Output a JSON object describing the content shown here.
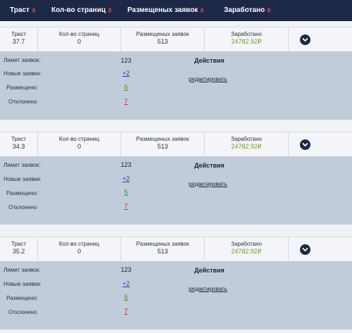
{
  "header": {
    "columns": [
      "Траст",
      "Кол-во страниц",
      "Размещеных заявок",
      "Заработано"
    ]
  },
  "rows": [
    {
      "trust_label": "Траст",
      "trust": "37.7",
      "pages_label": "Кол-во страниц",
      "pages": "0",
      "placed_label": "Размещеных заявок",
      "placed": "513",
      "earned_label": "Заработано",
      "earned": "24782.92₽",
      "limit_label": "Лимит заявок:",
      "limit": "123",
      "new_label": "Новые заявки:",
      "new": "+2",
      "placed2_label": "Размещено:",
      "placed2": "5",
      "rejected_label": "Отклонено",
      "rejected": "7",
      "actions_title": "Действия",
      "edit": "редактировать"
    },
    {
      "trust_label": "Траст",
      "trust": "34.3",
      "pages_label": "Кол-во страниц",
      "pages": "0",
      "placed_label": "Размещеных заявок",
      "placed": "513",
      "earned_label": "Заработано",
      "earned": "24782.92₽",
      "limit_label": "Лимит заявок:",
      "limit": "123",
      "new_label": "Новые заявки:",
      "new": "+2",
      "placed2_label": "Размещено:",
      "placed2": "5",
      "rejected_label": "Отклонено",
      "rejected": "7",
      "actions_title": "Действия",
      "edit": "редактировать"
    },
    {
      "trust_label": "Траст",
      "trust": "35.2",
      "pages_label": "Кол-во страниц",
      "pages": "0",
      "placed_label": "Размещеных заявок",
      "placed": "513",
      "earned_label": "Заработано",
      "earned": "24782.92₽",
      "limit_label": "Лимит заявок:",
      "limit": "123",
      "new_label": "Новые заявки:",
      "new": "+2",
      "placed2_label": "Размещено:",
      "placed2": "5",
      "rejected_label": "Отклонено",
      "rejected": "7",
      "actions_title": "Действия",
      "edit": "редактировать"
    }
  ],
  "icons": {
    "sort": "sort-arrows-icon",
    "expand": "chevron-down-icon"
  },
  "colors": {
    "header_bg": "#1c2845",
    "details_bg": "#c0ccda",
    "earned_green": "#6d9d1e",
    "sort_red": "#d43b3b"
  }
}
